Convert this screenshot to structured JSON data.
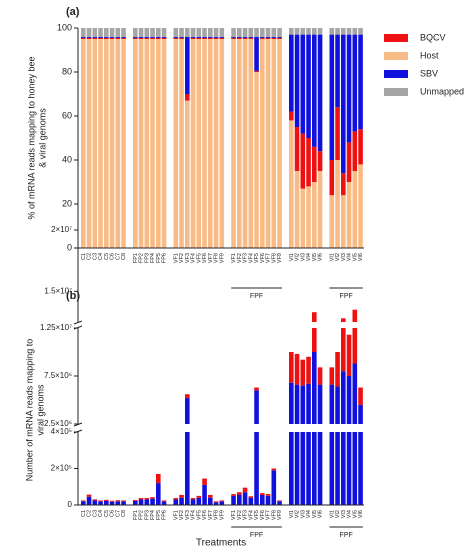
{
  "chart_data": [
    {
      "type": "stacked_bar",
      "panel_label": "(a)",
      "ylabel": [
        "% of mRNA reads mapping to honey bee",
        "& viral genoms"
      ],
      "ylim": [
        0,
        100
      ],
      "yticks": [
        0,
        20,
        40,
        60,
        80,
        100
      ],
      "legend": "right",
      "category_groups": [
        {
          "categories": [
            "C1",
            "C2",
            "C3",
            "C4",
            "C5",
            "C6",
            "C7",
            "C8"
          ]
        },
        {
          "categories": [
            "FP1",
            "FP2",
            "FP3",
            "FP4",
            "FP5",
            "FP6"
          ]
        },
        {
          "categories": [
            "VF1",
            "VF2",
            "VF3",
            "VF4",
            "VF5",
            "VF6",
            "VF7",
            "VF8",
            "VF9"
          ]
        },
        {
          "categories": [
            "VF1",
            "VF2",
            "VF3",
            "VF4",
            "VF5",
            "VF6",
            "VF7",
            "VF8",
            "VF9"
          ],
          "label": "FPF"
        },
        {
          "categories": [
            "VI1",
            "VI2",
            "VI3",
            "VI4",
            "VI5",
            "VI6"
          ]
        },
        {
          "categories": [
            "VI1",
            "VI2",
            "VI3",
            "VI4",
            "VI5",
            "VI6"
          ],
          "label": "FPF"
        }
      ],
      "series": [
        {
          "name": "BQCV",
          "color": "#ee1111",
          "values": [
            0.5,
            0.5,
            0.5,
            0.5,
            0.5,
            0.5,
            0.5,
            0.5,
            0.5,
            0.5,
            0.5,
            0.5,
            0.5,
            0.5,
            0.5,
            0.5,
            3,
            0.5,
            0.5,
            0.5,
            0.5,
            0.5,
            0.5,
            0.5,
            0.5,
            0.5,
            0.5,
            0.5,
            0.5,
            0.5,
            0.5,
            0.5,
            4,
            20,
            25,
            22,
            16,
            9,
            16,
            24,
            10,
            18,
            18,
            16
          ]
        },
        {
          "name": "Host",
          "color": "#f9bb85",
          "values": [
            95,
            95,
            95,
            95,
            95,
            95,
            95,
            95,
            95,
            95,
            95,
            95,
            95,
            95,
            95,
            95,
            67,
            95,
            95,
            95,
            95,
            95,
            95,
            95,
            95,
            95,
            95,
            80,
            95,
            95,
            95,
            95,
            58,
            35,
            27,
            28,
            30,
            35,
            24,
            40,
            24,
            30,
            35,
            38
          ]
        },
        {
          "name": "SBV",
          "color": "#1111dd",
          "values": [
            0.5,
            0.5,
            0.5,
            0.5,
            0.5,
            0.5,
            0.5,
            0.5,
            0.5,
            0.5,
            0.5,
            0.5,
            0.5,
            0.5,
            0.5,
            0.5,
            26,
            0.5,
            0.5,
            0.5,
            0.5,
            0.5,
            0.5,
            0.5,
            0.5,
            0.5,
            0.5,
            15.5,
            0.5,
            0.5,
            0.5,
            0.5,
            35,
            42,
            45,
            47,
            51,
            53,
            57,
            33,
            63,
            49,
            44,
            43
          ]
        },
        {
          "name": "Unmapped",
          "color": "#a6a6a6",
          "values": [
            4,
            4,
            4,
            4,
            4,
            4,
            4,
            4,
            4,
            4,
            4,
            4,
            4,
            4,
            4,
            4,
            4,
            4,
            4,
            4,
            4,
            4,
            4,
            4,
            4,
            4,
            4,
            4,
            4,
            4,
            4,
            4,
            3,
            3,
            3,
            3,
            3,
            3,
            3,
            3,
            3,
            3,
            3,
            3
          ]
        }
      ]
    },
    {
      "type": "broken_stacked_bar",
      "panel_label": "(b)",
      "ylabel": [
        "Number of mRNA reads  mapping to",
        "viral genoms"
      ],
      "xlabel": "Treatments",
      "y_segments": [
        {
          "ylim": [
            0,
            400000
          ],
          "yticks": [
            0,
            {
              "value": 200000,
              "label": "2×10⁵"
            },
            {
              "value": 400000,
              "label": "4×10⁵"
            }
          ]
        },
        {
          "ylim": [
            2500000,
            12500000
          ],
          "yticks": [
            {
              "value": 2500000,
              "label": "2.5×10⁶"
            },
            {
              "value": 7500000,
              "label": "7.5×10⁶"
            },
            {
              "value": 12500000,
              "label": "1.25×10⁷"
            }
          ]
        },
        {
          "ylim": [
            12500000,
            20000000
          ],
          "yticks": [
            {
              "value": 15000000,
              "label": "1.5×10⁷"
            },
            {
              "value": 20000000,
              "label": "2×10⁷"
            }
          ]
        }
      ],
      "category_groups": [
        {
          "categories": [
            "C1",
            "C2",
            "C3",
            "C4",
            "C5",
            "C6",
            "C7",
            "C8"
          ]
        },
        {
          "categories": [
            "FP1",
            "FP2",
            "FP3",
            "FP4",
            "FP5",
            "FP6"
          ]
        },
        {
          "categories": [
            "VF1",
            "VF2",
            "VF3",
            "VF4",
            "VF5",
            "VF6",
            "VF7",
            "VF8",
            "VF9"
          ]
        },
        {
          "categories": [
            "VF1",
            "VF2",
            "VF3",
            "VF4",
            "VF5",
            "VF6",
            "VF7",
            "VF8",
            "VF9"
          ],
          "label": "FPF"
        },
        {
          "categories": [
            "VI1",
            "VI2",
            "VI3",
            "VI4",
            "VI5",
            "VI6"
          ]
        },
        {
          "categories": [
            "VI1",
            "VI2",
            "VI3",
            "VI4",
            "VI5",
            "VI6"
          ],
          "label": "FPF"
        }
      ],
      "series": [
        {
          "name": "SBV",
          "color": "#1111dd",
          "values": [
            20000,
            45000,
            25000,
            20000,
            22000,
            18000,
            20000,
            20000,
            22000,
            30000,
            30000,
            35000,
            120000,
            20000,
            30000,
            40000,
            5200000,
            30000,
            40000,
            110000,
            40000,
            15000,
            20000,
            50000,
            55000,
            70000,
            40000,
            6000000,
            55000,
            50000,
            190000,
            20000,
            6800000,
            6600000,
            6500000,
            6700000,
            10000000,
            6600000,
            6600000,
            6400000,
            8000000,
            7500000,
            8800000,
            4500000
          ]
        },
        {
          "name": "BQCV",
          "color": "#ee1111",
          "values": [
            5000,
            12000,
            6000,
            5000,
            6000,
            5000,
            6000,
            5000,
            5000,
            8000,
            8000,
            8000,
            50000,
            5000,
            8000,
            15000,
            400000,
            8000,
            10000,
            35000,
            15000,
            5000,
            5000,
            10000,
            15000,
            25000,
            8000,
            300000,
            10000,
            10000,
            10000,
            5000,
            3200000,
            3200000,
            2700000,
            2800000,
            3300000,
            1800000,
            1800000,
            3600000,
            4800000,
            4300000,
            4700000,
            1800000
          ]
        }
      ]
    }
  ]
}
